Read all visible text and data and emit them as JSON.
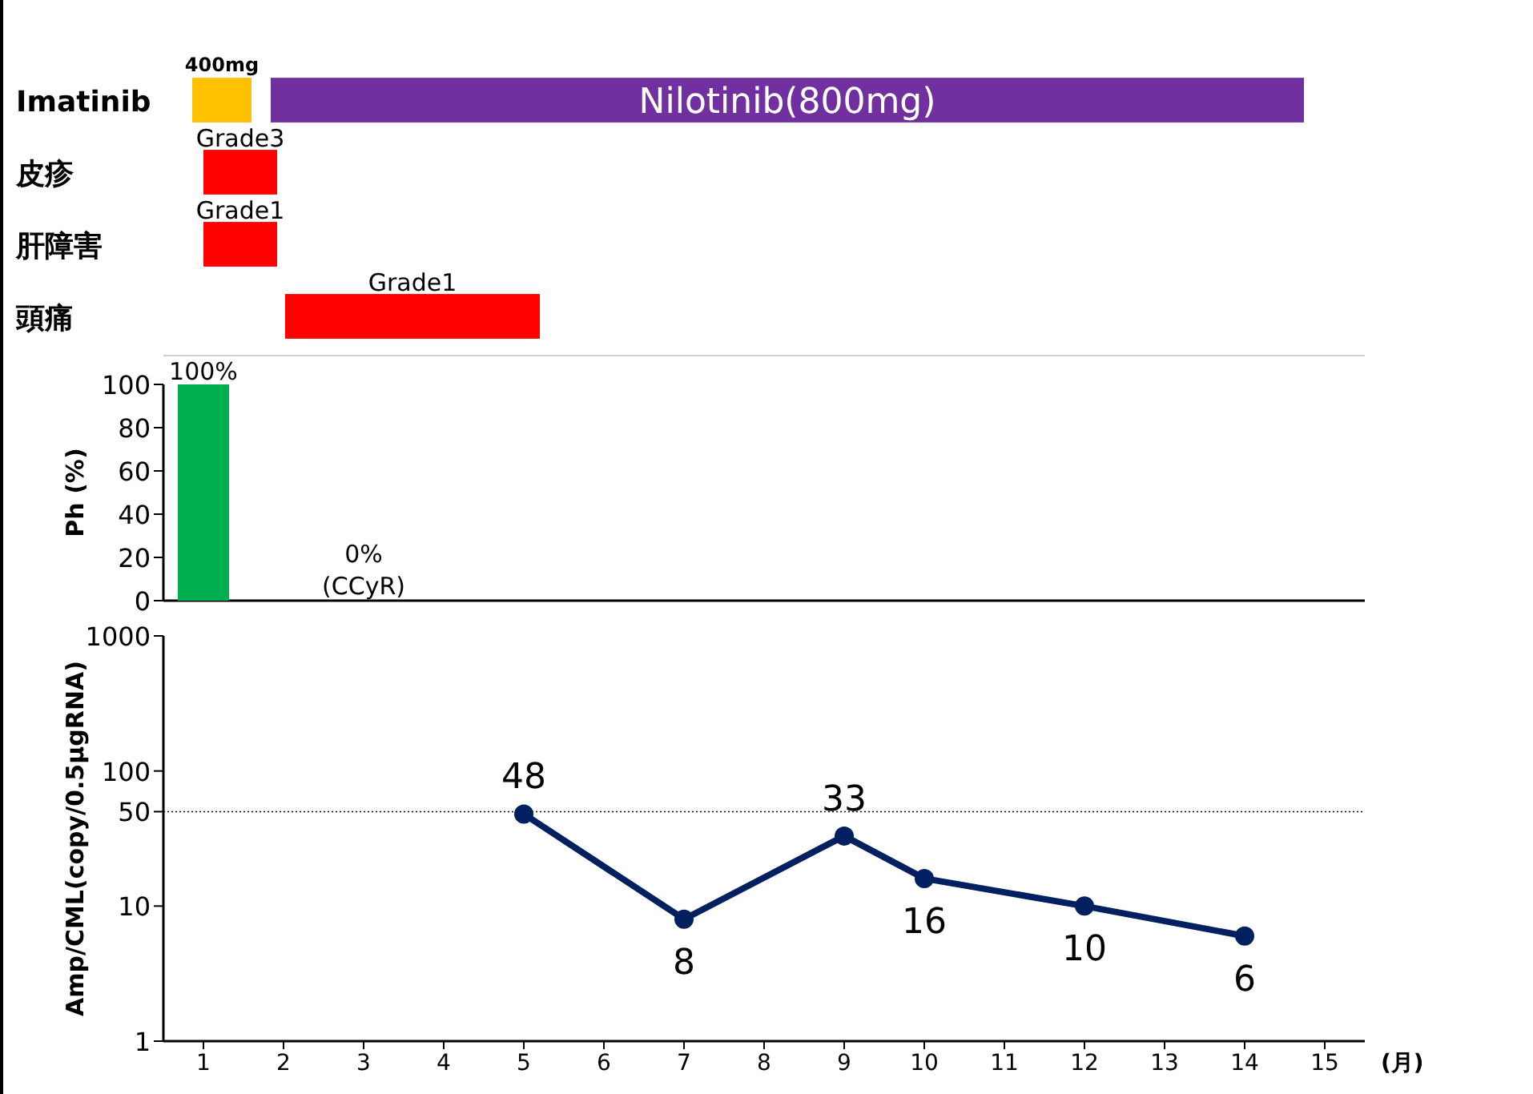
{
  "chart_data": [
    {
      "type": "bar",
      "orientation": "horizontal",
      "categories": [
        "Imatinib",
        "皮疹",
        "肝障害",
        "頭痛"
      ],
      "xlim": [
        0.5,
        15.5
      ],
      "tick_labels": false,
      "series": [
        {
          "name": "400mg",
          "color": "#ffc000",
          "values": [
            0.74,
            null,
            null,
            null
          ],
          "base": [
            0.86,
            null,
            null,
            null
          ]
        },
        {
          "name": "Nilotinib(800mg)",
          "color": "#7030a0",
          "values": [
            12.9,
            null,
            null,
            null
          ],
          "base": [
            1.84,
            null,
            null,
            null
          ]
        },
        {
          "color": "#ff0000",
          "values": [
            null,
            0.92,
            0.92,
            3.18
          ],
          "base": [
            null,
            1.0,
            1.0,
            2.02
          ]
        }
      ],
      "annotations": [
        "Grade3",
        "Grade1",
        "Grade1"
      ]
    },
    {
      "type": "bar",
      "categories": [
        null,
        null,
        null,
        null,
        null,
        null,
        null,
        null,
        null,
        null,
        null,
        null,
        null,
        null,
        null
      ],
      "color": "#00b050",
      "values": [
        100,
        null,
        0,
        null,
        null,
        null,
        null,
        null,
        null,
        null,
        null,
        null,
        null,
        null,
        null
      ],
      "value_labels": [
        "100%",
        null,
        "0%",
        null,
        null,
        null,
        null,
        null,
        null,
        null,
        null,
        null,
        null,
        null,
        null
      ],
      "annotations": [
        "(CCyR)"
      ],
      "ylabel": "Ph (%)",
      "ylim": [
        0,
        100
      ],
      "yticks": [
        0,
        20,
        40,
        60,
        80,
        100
      ],
      "tick_labels": "y"
    },
    {
      "type": "line",
      "x": [
        5,
        7,
        9,
        10,
        12,
        14
      ],
      "series": [
        {
          "color": "#002060",
          "values": [
            48,
            8,
            33,
            16,
            10,
            6
          ]
        }
      ],
      "data_labels": true,
      "marker": "circle",
      "log": "y",
      "xlim": [
        0.5,
        15.5
      ],
      "xticks": [
        1,
        2,
        3,
        4,
        5,
        6,
        7,
        8,
        9,
        10,
        11,
        12,
        13,
        14,
        15
      ],
      "ylim": [
        1,
        1000
      ],
      "yticks": [
        1,
        10,
        50,
        100,
        1000
      ],
      "ylabel": "Amp/CML(copy/0.5μgRNA)",
      "xlabel": "(月)",
      "ref_lines": [
        {
          "axis": "y",
          "value": 50,
          "line_style": "dotted",
          "color": "#000000"
        }
      ]
    }
  ]
}
